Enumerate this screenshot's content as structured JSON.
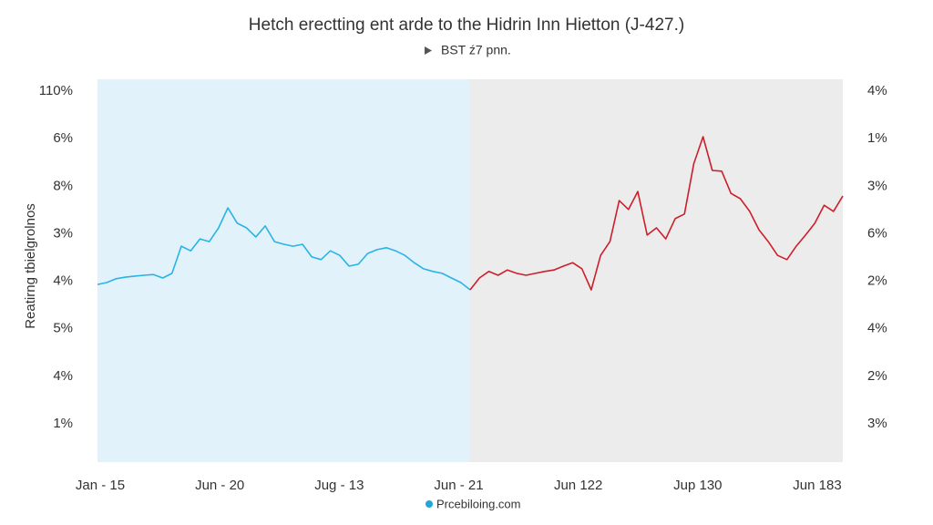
{
  "chart_data": {
    "type": "line",
    "title": "Hetch erectting ent arde to the Hidrin Inn Hietton (J-427.)",
    "subtitle": "BST ź7 pnn.",
    "y_axis_title": "Reatirng tbielgrolnos",
    "y_axis_labels": [
      "110%",
      "6%",
      "8%",
      "3%",
      "4%",
      "5%",
      "4%",
      "1%"
    ],
    "y2_axis_labels": [
      "4%",
      "1%",
      "3%",
      "6%",
      "2%",
      "4%",
      "2%",
      "3%"
    ],
    "x_axis_labels": [
      "Jan - 15",
      "Jun - 20",
      "Jug - 13",
      "Jun - 21",
      "Jun 122",
      "Jup 130",
      "Jun 183"
    ],
    "legend_label": "Prcebiloing.com",
    "legend_color": "#1ea7d8",
    "ylim": [
      0,
      100
    ],
    "series": [
      {
        "color": "#29b3e6",
        "background": "#e2f2fb",
        "values": [
          46.4,
          46.9,
          47.9,
          48.3,
          48.6,
          48.8,
          49.0,
          48.1,
          49.3,
          56.4,
          55.2,
          58.3,
          57.6,
          61.2,
          66.4,
          62.4,
          61.2,
          58.8,
          61.7,
          57.6,
          56.9,
          56.4,
          56.9,
          53.6,
          52.9,
          55.2,
          54.0,
          51.2,
          51.7,
          54.5,
          55.5,
          56.0,
          55.2,
          54.0,
          52.1,
          50.5,
          49.8,
          49.3,
          48.1,
          46.9,
          45.0,
          null,
          null,
          null,
          null,
          null,
          null,
          null,
          null,
          null,
          null,
          null,
          null,
          null,
          null,
          null,
          null,
          null,
          null,
          null,
          null,
          null,
          null,
          null,
          null,
          null,
          null,
          null,
          null,
          null,
          null,
          null,
          null,
          null,
          null,
          null,
          null,
          null,
          null,
          null,
          null
        ]
      },
      {
        "color": "#cc1f2b",
        "background": "#ececec",
        "values": [
          null,
          null,
          null,
          null,
          null,
          null,
          null,
          null,
          null,
          null,
          null,
          null,
          null,
          null,
          null,
          null,
          null,
          null,
          null,
          null,
          null,
          null,
          null,
          null,
          null,
          null,
          null,
          null,
          null,
          null,
          null,
          null,
          null,
          null,
          null,
          null,
          null,
          null,
          null,
          null,
          45.0,
          48.1,
          49.8,
          48.8,
          50.2,
          49.3,
          48.8,
          49.3,
          49.8,
          50.2,
          51.2,
          52.1,
          50.5,
          45.0,
          54.0,
          57.6,
          68.3,
          66.0,
          70.7,
          59.3,
          61.2,
          58.3,
          63.6,
          64.8,
          77.9,
          85.0,
          76.2,
          76.0,
          70.2,
          68.8,
          65.5,
          60.7,
          57.6,
          54.0,
          52.9,
          56.4,
          59.3,
          62.4,
          67.1,
          65.5,
          69.5
        ]
      }
    ]
  }
}
